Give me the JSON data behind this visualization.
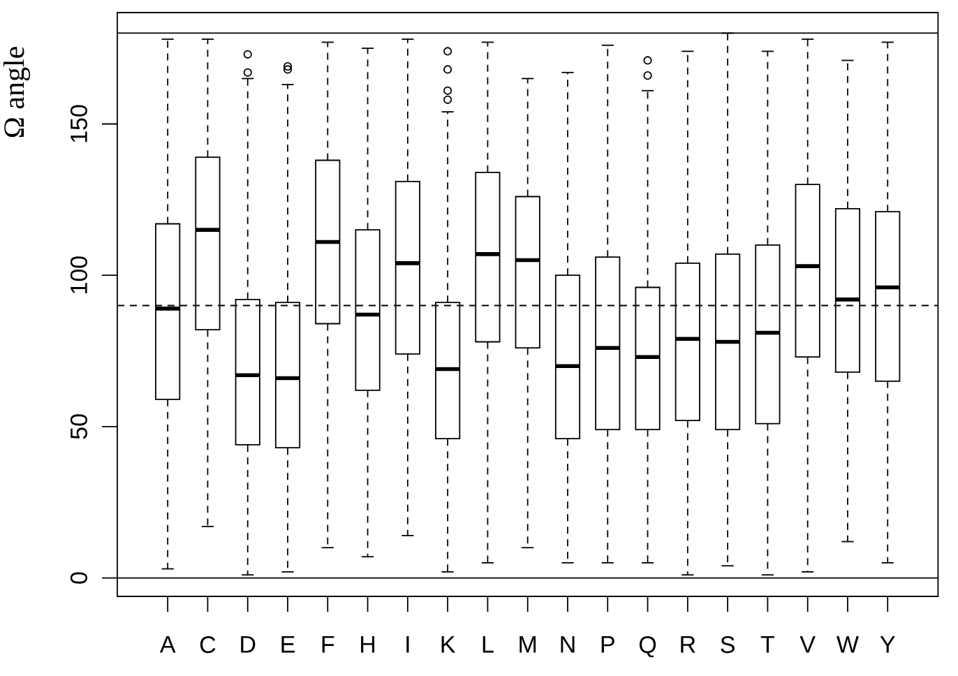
{
  "chart_data": {
    "type": "box",
    "ylabel": "Ω angle",
    "color": "#000000",
    "categories": [
      "A",
      "C",
      "D",
      "E",
      "F",
      "H",
      "I",
      "K",
      "L",
      "M",
      "N",
      "P",
      "Q",
      "R",
      "S",
      "T",
      "V",
      "W",
      "Y"
    ],
    "boxes": [
      {
        "low": 3,
        "q1": 59,
        "median": 89,
        "q3": 117,
        "high": 178
      },
      {
        "low": 17,
        "q1": 82,
        "median": 115,
        "q3": 139,
        "high": 178
      },
      {
        "low": 1,
        "q1": 44,
        "median": 67,
        "q3": 92,
        "high": 165,
        "outliers": [
          167,
          173
        ]
      },
      {
        "low": 2,
        "q1": 43,
        "median": 66,
        "q3": 91,
        "high": 163,
        "outliers": [
          168,
          169
        ]
      },
      {
        "low": 10,
        "q1": 84,
        "median": 111,
        "q3": 138,
        "high": 177
      },
      {
        "low": 7,
        "q1": 62,
        "median": 87,
        "q3": 115,
        "high": 175
      },
      {
        "low": 14,
        "q1": 74,
        "median": 104,
        "q3": 131,
        "high": 178
      },
      {
        "low": 2,
        "q1": 46,
        "median": 69,
        "q3": 91,
        "high": 154,
        "outliers": [
          158,
          161,
          168,
          174
        ]
      },
      {
        "low": 5,
        "q1": 78,
        "median": 107,
        "q3": 134,
        "high": 177
      },
      {
        "low": 10,
        "q1": 76,
        "median": 105,
        "q3": 126,
        "high": 165
      },
      {
        "low": 5,
        "q1": 46,
        "median": 70,
        "q3": 100,
        "high": 167
      },
      {
        "low": 5,
        "q1": 49,
        "median": 76,
        "q3": 106,
        "high": 176
      },
      {
        "low": 5,
        "q1": 49,
        "median": 73,
        "q3": 96,
        "high": 161,
        "outliers": [
          166,
          171
        ]
      },
      {
        "low": 1,
        "q1": 52,
        "median": 79,
        "q3": 104,
        "high": 174
      },
      {
        "low": 4,
        "q1": 49,
        "median": 78,
        "q3": 107,
        "high": 180
      },
      {
        "low": 1,
        "q1": 51,
        "median": 81,
        "q3": 110,
        "high": 174
      },
      {
        "low": 2,
        "q1": 73,
        "median": 103,
        "q3": 130,
        "high": 178
      },
      {
        "low": 12,
        "q1": 68,
        "median": 92,
        "q3": 122,
        "high": 171
      },
      {
        "low": 5,
        "q1": 65,
        "median": 96,
        "q3": 121,
        "high": 177
      }
    ],
    "ylim": [
      -6.1,
      186.8
    ],
    "yticks": [
      0,
      50,
      100,
      150
    ],
    "ref_lines": [
      {
        "axis": "y",
        "value": 0,
        "line_style": "solid"
      },
      {
        "axis": "y",
        "value": 180,
        "line_style": "solid"
      },
      {
        "axis": "y",
        "value": 90,
        "line_style": "dashed"
      }
    ]
  }
}
